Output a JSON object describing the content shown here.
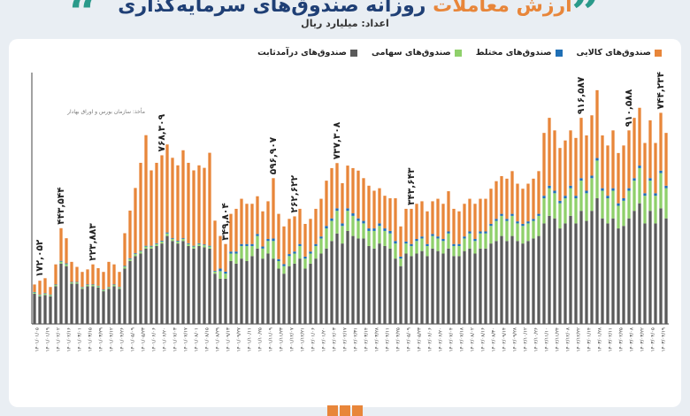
{
  "header": {
    "title_accent": "ارزش معاملات",
    "title_rest": " روزانه صندوق‌های سرمایه‌گذاری",
    "subtitle": "اعداد: میلیارد ریال"
  },
  "legend": [
    {
      "label": "صندوق‌های کالایی",
      "color": "#e8863a"
    },
    {
      "label": "صندوق‌های مختلط",
      "color": "#1f6fb5"
    },
    {
      "label": "صندوق‌های سهامی",
      "color": "#8fd06b"
    },
    {
      "label": "صندوق‌های درآمدثابت",
      "color": "#5a5a5a"
    }
  ],
  "source_note": "مأخذ: سازمان بورس و اوراق بهادار",
  "chart_data": {
    "type": "bar",
    "stacked": true,
    "ylim": [
      0,
      1000
    ],
    "grid": false,
    "legend_position": "top-right",
    "series": [
      {
        "name": "صندوق‌های درآمدثابت",
        "color": "#5a5a5a",
        "values": [
          120,
          110,
          115,
          110,
          150,
          240,
          230,
          160,
          160,
          140,
          150,
          150,
          145,
          130,
          140,
          150,
          140,
          220,
          250,
          270,
          280,
          300,
          300,
          310,
          320,
          350,
          330,
          320,
          330,
          310,
          300,
          310,
          305,
          300,
          200,
          180,
          180,
          250,
          240,
          260,
          250,
          270,
          300,
          260,
          280,
          260,
          220,
          200,
          230,
          240,
          260,
          220,
          240,
          260,
          280,
          300,
          330,
          360,
          320,
          370,
          350,
          340,
          340,
          310,
          300,
          320,
          310,
          300,
          260,
          230,
          280,
          270,
          280,
          290,
          270,
          300,
          290,
          280,
          300,
          270,
          270,
          290,
          300,
          280,
          300,
          300,
          320,
          330,
          350,
          330,
          350,
          330,
          320,
          330,
          340,
          350,
          400,
          430,
          420,
          380,
          400,
          430,
          400,
          450,
          410,
          450,
          500,
          420,
          400,
          420,
          380,
          390,
          420,
          450,
          480,
          400,
          450,
          400,
          460,
          420
        ]
      },
      {
        "name": "صندوق‌های سهامی",
        "color": "#8fd06b",
        "values": [
          5,
          5,
          5,
          5,
          5,
          8,
          8,
          5,
          5,
          5,
          5,
          5,
          5,
          5,
          5,
          5,
          5,
          8,
          8,
          8,
          8,
          8,
          8,
          8,
          8,
          10,
          8,
          8,
          8,
          8,
          8,
          8,
          8,
          8,
          8,
          30,
          20,
          30,
          40,
          50,
          60,
          40,
          50,
          40,
          50,
          70,
          30,
          30,
          40,
          40,
          50,
          40,
          40,
          50,
          60,
          80,
          80,
          90,
          70,
          80,
          80,
          70,
          60,
          60,
          70,
          70,
          60,
          60,
          60,
          30,
          40,
          40,
          50,
          50,
          40,
          50,
          50,
          50,
          60,
          40,
          40,
          50,
          60,
          50,
          60,
          60,
          70,
          80,
          80,
          80,
          80,
          70,
          70,
          70,
          70,
          80,
          100,
          110,
          100,
          100,
          100,
          110,
          100,
          120,
          110,
          130,
          150,
          110,
          100,
          110,
          90,
          100,
          110,
          120,
          140,
          110,
          120,
          110,
          140,
          120
        ]
      },
      {
        "name": "صندوق‌های مختلط",
        "color": "#1f6fb5",
        "values": [
          2,
          2,
          2,
          2,
          2,
          3,
          3,
          2,
          2,
          2,
          2,
          2,
          2,
          2,
          2,
          2,
          2,
          3,
          3,
          3,
          3,
          3,
          3,
          3,
          3,
          4,
          3,
          3,
          3,
          3,
          3,
          3,
          3,
          3,
          3,
          10,
          8,
          8,
          8,
          8,
          8,
          8,
          8,
          8,
          8,
          10,
          8,
          8,
          8,
          8,
          8,
          8,
          8,
          8,
          8,
          10,
          10,
          10,
          10,
          10,
          10,
          10,
          10,
          10,
          10,
          10,
          10,
          10,
          10,
          8,
          8,
          8,
          8,
          8,
          8,
          8,
          8,
          8,
          8,
          8,
          8,
          8,
          8,
          8,
          8,
          8,
          8,
          8,
          8,
          8,
          8,
          8,
          8,
          8,
          8,
          8,
          10,
          10,
          10,
          10,
          10,
          10,
          10,
          10,
          10,
          10,
          10,
          10,
          10,
          10,
          10,
          10,
          10,
          10,
          10,
          10,
          10,
          10,
          10,
          10
        ]
      },
      {
        "name": "صندوق‌های کالایی",
        "color": "#e8863a",
        "values": [
          30,
          55,
          60,
          30,
          80,
          130,
          100,
          80,
          60,
          60,
          60,
          80,
          70,
          70,
          100,
          80,
          60,
          130,
          190,
          260,
          350,
          440,
          300,
          320,
          340,
          350,
          320,
          300,
          350,
          320,
          300,
          310,
          305,
          370,
          200,
          130,
          110,
          150,
          170,
          180,
          160,
          160,
          150,
          140,
          150,
          240,
          180,
          150,
          140,
          140,
          140,
          130,
          130,
          140,
          150,
          180,
          200,
          180,
          160,
          170,
          180,
          190,
          170,
          170,
          150,
          140,
          130,
          130,
          170,
          120,
          130,
          140,
          140,
          140,
          130,
          130,
          150,
          140,
          160,
          140,
          130,
          130,
          130,
          140,
          130,
          130,
          140,
          150,
          150,
          160,
          170,
          150,
          140,
          150,
          160,
          170,
          250,
          270,
          240,
          210,
          220,
          220,
          230,
          240,
          220,
          240,
          270,
          210,
          200,
          230,
          200,
          210,
          230,
          240,
          230,
          200,
          230,
          200,
          230,
          210
        ]
      }
    ],
    "annotations": [
      {
        "index": 1,
        "label": "۱۷۲,۰۵۲"
      },
      {
        "index": 5,
        "label": "۴۴۳,۵۴۴"
      },
      {
        "index": 11,
        "label": "۲۲۳,۸۸۳"
      },
      {
        "index": 24,
        "label": "۷۶۸,۳۰۹"
      },
      {
        "index": 36,
        "label": "۳۴۹,۸۰۴"
      },
      {
        "index": 45,
        "label": "۵۹۶,۹۰۷"
      },
      {
        "index": 49,
        "label": "۲۶۲,۶۲۲"
      },
      {
        "index": 57,
        "label": "۷۳۷,۳۰۸"
      },
      {
        "index": 71,
        "label": "۳۴۳,۶۴۳"
      },
      {
        "index": 103,
        "label": "۹۱۶,۵۸۷"
      },
      {
        "index": 112,
        "label": "۹۱۰,۵۸۸"
      },
      {
        "index": 118,
        "label": "۷۴۴,۲۳۴"
      }
    ],
    "tick_labels": [
      "۱۴۰۱/۰۱/۰۵",
      "۱۴۰۱/۰۱/۱۹",
      "۱۴۰۱/۰۲/۰۲",
      "۱۴۰۱/۰۲/۱۶",
      "۱۴۰۱/۰۳/۰۱",
      "۱۴۰۱/۰۳/۱۵",
      "۱۴۰۱/۰۳/۲۹",
      "۱۴۰۱/۰۴/۱۲",
      "۱۴۰۱/۰۴/۲۶",
      "۱۴۰۱/۰۵/۰۹",
      "۱۴۰۱/۰۵/۲۳",
      "۱۴۰۱/۰۶/۰۶",
      "۱۴۰۱/۰۶/۲۰",
      "۱۴۰۱/۰۷/۰۳",
      "۱۴۰۱/۰۷/۱۷",
      "۱۴۰۱/۰۸/۰۱",
      "۱۴۰۱/۰۸/۱۵",
      "۱۴۰۱/۰۸/۲۹",
      "۱۴۰۱/۰۹/۱۳",
      "۱۴۰۱/۰۹/۲۷",
      "۱۴۰۱/۱۰/۱۱",
      "۱۴۰۱/۱۰/۲۵",
      "۱۴۰۱/۱۱/۰۹",
      "۱۴۰۱/۱۱/۲۳",
      "۱۴۰۱/۱۲/۰۷",
      "۱۴۰۱/۱۲/۲۱",
      "۱۴۰۲/۰۱/۰۶",
      "۱۴۰۲/۰۱/۲۰",
      "۱۴۰۲/۰۲/۰۳",
      "۱۴۰۲/۰۲/۱۷",
      "۱۴۰۲/۰۲/۳۱",
      "۱۴۰۲/۰۳/۱۴",
      "۱۴۰۲/۰۳/۲۸",
      "۱۴۰۲/۰۴/۱۱",
      "۱۴۰۲/۰۴/۲۵",
      "۱۴۰۲/۰۵/۰۹",
      "۱۴۰۲/۰۵/۲۳",
      "۱۴۰۲/۰۶/۰۶",
      "۱۴۰۲/۰۶/۲۰",
      "۱۴۰۲/۰۷/۰۴",
      "۱۴۰۲/۰۷/۱۸",
      "۱۴۰۲/۰۸/۰۲",
      "۱۴۰۲/۰۸/۱۶",
      "۱۴۰۲/۰۸/۳۰",
      "۱۴۰۲/۰۹/۱۴",
      "۱۴۰۲/۰۹/۲۸",
      "۱۴۰۲/۱۰/۱۲",
      "۱۴۰۲/۱۰/۲۶",
      "۱۴۰۲/۱۱/۱۰",
      "۱۴۰۲/۱۱/۲۴",
      "۱۴۰۲/۱۲/۰۸",
      "۱۴۰۲/۱۲/۲۲",
      "۱۴۰۳/۰۱/۱۴",
      "۱۴۰۳/۰۱/۲۸",
      "۱۴۰۳/۰۲/۱۱",
      "۱۴۰۳/۰۲/۲۵",
      "۱۴۰۳/۰۳/۰۸",
      "۱۴۰۳/۰۳/۲۲",
      "۱۴۰۳/۰۴/۰۵",
      "۱۴۰۳/۰۴/۱۹"
    ]
  }
}
